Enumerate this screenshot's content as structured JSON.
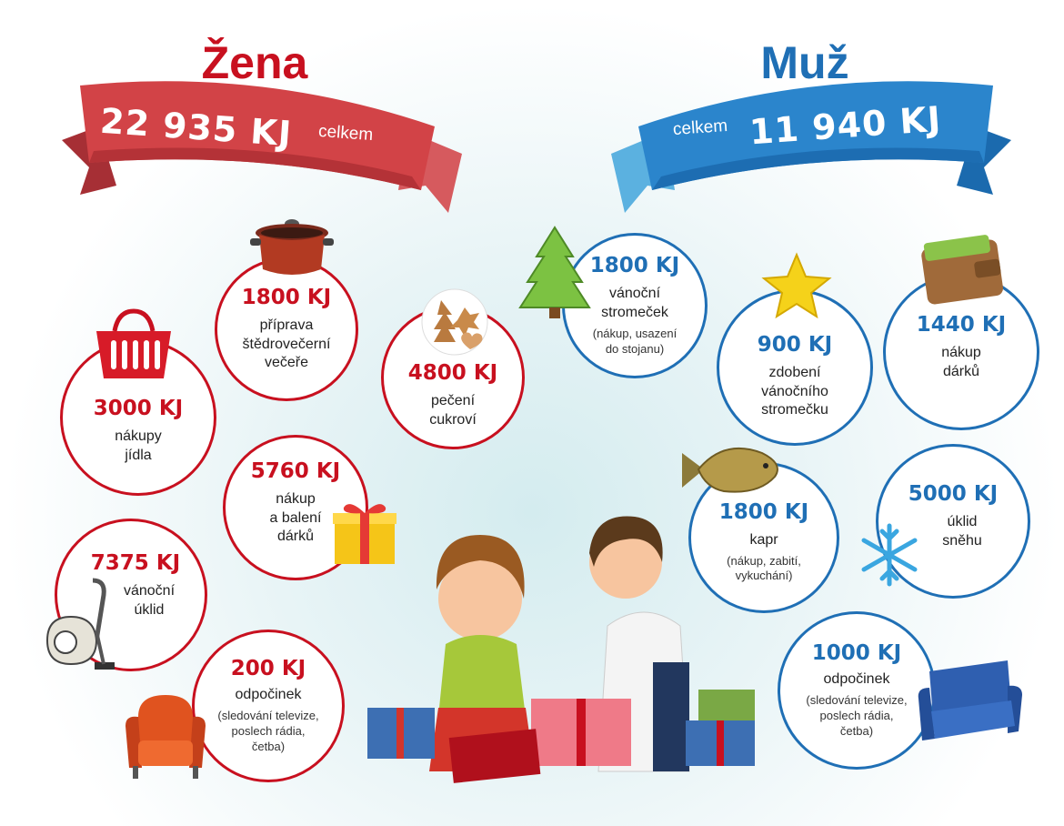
{
  "zena": {
    "title": "Žena",
    "total": "22 935 KJ",
    "total_suffix": "celkem",
    "color": "#c8101f",
    "items": [
      {
        "kj": "1800 KJ",
        "label": "příprava\nštědrovečerní\nvečeře",
        "icon": "pot-icon"
      },
      {
        "kj": "4800 KJ",
        "label": "pečení\ncukroví",
        "icon": "cookies-icon"
      },
      {
        "kj": "3000 KJ",
        "label": "nákupy\njídla",
        "icon": "shopping-basket-icon"
      },
      {
        "kj": "5760 KJ",
        "label": "nákup\na balení\ndárků",
        "icon": "gift-icon"
      },
      {
        "kj": "7375 KJ",
        "label": "vánoční\núklid",
        "icon": "vacuum-cleaner-icon"
      },
      {
        "kj": "200 KJ",
        "label": "odpočinek",
        "note": "(sledování televize,\nposlech rádia,\nčetba)",
        "icon": "armchair-icon"
      }
    ]
  },
  "muz": {
    "title": "Muž",
    "total": "11 940 KJ",
    "total_prefix": "celkem",
    "color": "#1f6fb5",
    "items": [
      {
        "kj": "1800 KJ",
        "label": "vánoční\nstromeček",
        "note": "(nákup, usazení\ndo stojanu)",
        "icon": "christmas-tree-icon"
      },
      {
        "kj": "900 KJ",
        "label": "zdobení\nvánočního\nstromečku",
        "icon": "star-icon"
      },
      {
        "kj": "1440 KJ",
        "label": "nákup\ndárků",
        "icon": "wallet-icon"
      },
      {
        "kj": "1800 KJ",
        "label": "kapr",
        "note": "(nákup, zabití,\nvykuchání)",
        "icon": "carp-fish-icon"
      },
      {
        "kj": "5000 KJ",
        "label": "úklid\nsněhu",
        "icon": "snowflake-icon"
      },
      {
        "kj": "1000 KJ",
        "label": "odpočinek",
        "note": "(sledování televize,\nposlech rádia,\nčetba)",
        "icon": "sofa-icon"
      }
    ]
  }
}
